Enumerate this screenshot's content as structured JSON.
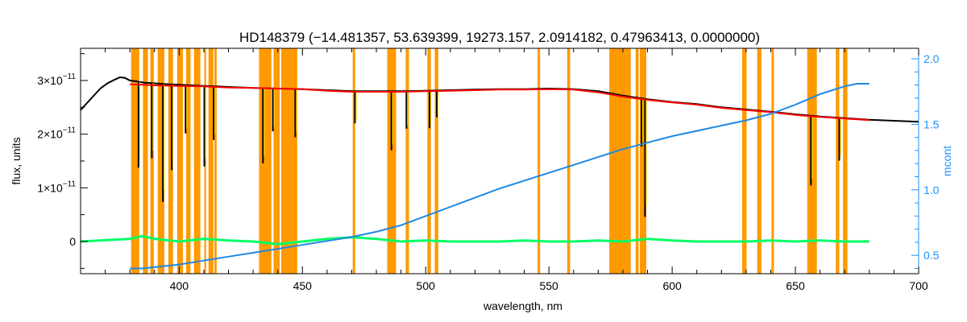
{
  "colors": {
    "axis": "#000000",
    "right_axis": "#1e90ff",
    "band": "#ff9900",
    "observed": "#000000",
    "model_red": "#ff0000",
    "model_yellow": "#ffd700",
    "residual": "#00ff66",
    "mcont": "#1e88e5"
  },
  "chart_data": {
    "type": "line",
    "title": "HD148379    (−14.481357, 53.639399, 19273.157, 2.0914182, 0.47963413, 0.0000000)",
    "xlabel": "wavelength, nm",
    "ylabel": "flux, units",
    "ylabel_right": "mcont",
    "xlim": [
      360,
      700
    ],
    "ylim": [
      -6e-12,
      3.6e-11
    ],
    "ylim_right": [
      0.36,
      2.08
    ],
    "x_ticks": [
      400,
      450,
      500,
      550,
      600,
      650,
      700
    ],
    "x_tick_labels": [
      "400",
      "450",
      "500",
      "550",
      "600",
      "650",
      "700"
    ],
    "y_ticks": [
      0,
      1e-11,
      2e-11,
      3e-11
    ],
    "y_tick_labels": [
      {
        "mantissa": "0",
        "exp": ""
      },
      {
        "mantissa": "1×10",
        "exp": "−11"
      },
      {
        "mantissa": "2×10",
        "exp": "−11"
      },
      {
        "mantissa": "3×10",
        "exp": "−11"
      }
    ],
    "y_right_ticks": [
      0.5,
      1.0,
      1.5,
      2.0
    ],
    "y_right_tick_labels": [
      "0.5",
      "1.0",
      "1.5",
      "2.0"
    ],
    "masked_bands": [
      [
        380.5,
        383.8
      ],
      [
        385.3,
        387.3
      ],
      [
        388.3,
        389.7
      ],
      [
        391.3,
        394.0
      ],
      [
        395.6,
        397.5
      ],
      [
        399.2,
        401.5
      ],
      [
        402.8,
        404.6
      ],
      [
        406.0,
        408.6
      ],
      [
        410.2,
        410.9
      ],
      [
        411.9,
        413.9
      ],
      [
        414.3,
        415.2
      ],
      [
        432.4,
        437.4
      ],
      [
        438.3,
        440.8
      ],
      [
        441.4,
        447.9
      ],
      [
        470.4,
        471.4
      ],
      [
        484.4,
        488.0
      ],
      [
        491.9,
        493.2
      ],
      [
        500.7,
        502.1
      ],
      [
        503.7,
        505.1
      ],
      [
        545.4,
        546.4
      ],
      [
        557.4,
        558.6
      ],
      [
        574.5,
        583.2
      ],
      [
        585.2,
        586.4
      ],
      [
        586.9,
        589.5
      ],
      [
        628.4,
        630.2
      ],
      [
        634.5,
        636.2
      ],
      [
        640.3,
        641.3
      ],
      [
        654.8,
        658.7
      ],
      [
        666.4,
        667.8
      ],
      [
        669.3,
        671.1
      ]
    ],
    "series": [
      {
        "key": "observed",
        "x": [
          360,
          362,
          365,
          368,
          371,
          374,
          376,
          378,
          380,
          383,
          386,
          389,
          392,
          396,
          400,
          405,
          410,
          415,
          420,
          430,
          440,
          450,
          460,
          470,
          480,
          490,
          500,
          510,
          520,
          530,
          540,
          550,
          560,
          570,
          580,
          590,
          600,
          610,
          620,
          630,
          640,
          650,
          660,
          670,
          680,
          690,
          700
        ],
        "y": [
          2.45e-11,
          2.55e-11,
          2.7e-11,
          2.85e-11,
          2.95e-11,
          3.02e-11,
          3.06e-11,
          3.05e-11,
          3e-11,
          2.98e-11,
          2.96e-11,
          2.95e-11,
          2.94e-11,
          2.93e-11,
          2.92e-11,
          2.91e-11,
          2.9e-11,
          2.89e-11,
          2.88e-11,
          2.86e-11,
          2.85e-11,
          2.84e-11,
          2.82e-11,
          2.8e-11,
          2.8e-11,
          2.8e-11,
          2.81e-11,
          2.82e-11,
          2.83e-11,
          2.84e-11,
          2.84e-11,
          2.85e-11,
          2.84e-11,
          2.8e-11,
          2.72e-11,
          2.65e-11,
          2.6e-11,
          2.56e-11,
          2.5e-11,
          2.46e-11,
          2.42e-11,
          2.37e-11,
          2.33e-11,
          2.3e-11,
          2.27e-11,
          2.25e-11,
          2.23e-11
        ]
      },
      {
        "key": "model",
        "x": [
          380,
          385,
          390,
          400,
          410,
          420,
          430,
          440,
          450,
          460,
          470,
          480,
          490,
          500,
          510,
          520,
          530,
          540,
          550,
          560,
          570,
          580,
          590,
          600,
          610,
          620,
          630,
          640,
          650,
          660,
          670,
          680
        ],
        "y": [
          2.93e-11,
          2.92e-11,
          2.91e-11,
          2.9e-11,
          2.89e-11,
          2.87e-11,
          2.86e-11,
          2.85e-11,
          2.84e-11,
          2.81e-11,
          2.79e-11,
          2.79e-11,
          2.79e-11,
          2.8e-11,
          2.81e-11,
          2.82e-11,
          2.83e-11,
          2.83e-11,
          2.84e-11,
          2.83e-11,
          2.78e-11,
          2.7e-11,
          2.64e-11,
          2.59e-11,
          2.55e-11,
          2.49e-11,
          2.45e-11,
          2.41e-11,
          2.36e-11,
          2.32e-11,
          2.29e-11,
          2.26e-11
        ]
      },
      {
        "key": "mcont",
        "x": [
          380,
          385,
          390,
          400,
          410,
          420,
          430,
          440,
          450,
          460,
          470,
          480,
          490,
          500,
          510,
          520,
          530,
          540,
          550,
          560,
          570,
          580,
          590,
          600,
          610,
          620,
          630,
          640,
          650,
          660,
          670,
          675,
          680
        ],
        "y": [
          0.4,
          0.4,
          0.41,
          0.43,
          0.46,
          0.49,
          0.52,
          0.55,
          0.58,
          0.61,
          0.64,
          0.68,
          0.73,
          0.8,
          0.87,
          0.94,
          1.01,
          1.07,
          1.13,
          1.19,
          1.25,
          1.31,
          1.36,
          1.41,
          1.45,
          1.49,
          1.53,
          1.58,
          1.65,
          1.73,
          1.79,
          1.81,
          1.81
        ]
      },
      {
        "key": "residual",
        "x": [
          360,
          380,
          385,
          390,
          400,
          410,
          420,
          430,
          440,
          450,
          460,
          470,
          480,
          490,
          500,
          510,
          520,
          530,
          540,
          550,
          560,
          570,
          580,
          590,
          600,
          610,
          620,
          630,
          640,
          650,
          660,
          670,
          680
        ],
        "y": [
          0.0,
          5e-13,
          1e-12,
          5e-13,
          0.0,
          5e-13,
          2e-13,
          0.0,
          -5e-13,
          0.0,
          5e-13,
          8e-13,
          5e-13,
          0.0,
          2e-13,
          0.0,
          0.0,
          0.0,
          2e-13,
          0.0,
          0.0,
          2e-13,
          0.0,
          5e-13,
          2e-13,
          0.0,
          0.0,
          0.0,
          2e-13,
          0.0,
          2e-13,
          0.0,
          0.0
        ]
      }
    ],
    "absorption_lines": [
      {
        "x": 383.5,
        "depth": 1.6e-11
      },
      {
        "x": 388.9,
        "depth": 1.4e-11
      },
      {
        "x": 393.4,
        "depth": 2.2e-11
      },
      {
        "x": 397.0,
        "depth": 1.6e-11
      },
      {
        "x": 402.6,
        "depth": 9e-12
      },
      {
        "x": 410.2,
        "depth": 1.5e-11
      },
      {
        "x": 414.0,
        "depth": 1e-11
      },
      {
        "x": 434.0,
        "depth": 1.4e-11
      },
      {
        "x": 438.0,
        "depth": 8e-12
      },
      {
        "x": 447.1,
        "depth": 9e-12
      },
      {
        "x": 471.3,
        "depth": 6e-12
      },
      {
        "x": 486.1,
        "depth": 1.1e-11
      },
      {
        "x": 492.2,
        "depth": 7e-12
      },
      {
        "x": 501.6,
        "depth": 7e-12
      },
      {
        "x": 504.5,
        "depth": 5e-12
      },
      {
        "x": 587.6,
        "depth": 9e-12
      },
      {
        "x": 589.0,
        "depth": 2.2e-11
      },
      {
        "x": 656.3,
        "depth": 1.3e-11
      },
      {
        "x": 667.8,
        "depth": 8e-12
      }
    ]
  }
}
